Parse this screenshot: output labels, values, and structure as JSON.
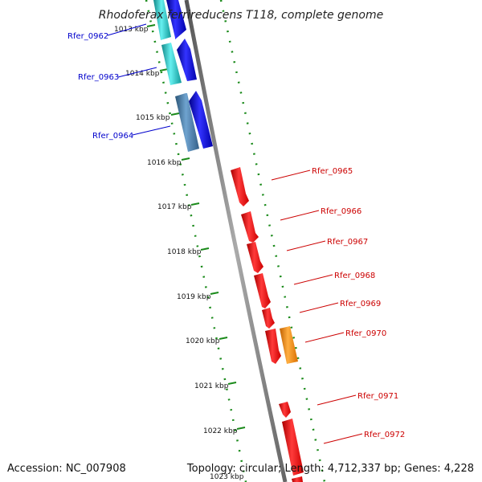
{
  "title": "Rhodoferax ferrireducens T118, complete genome",
  "footer": {
    "accession": "Accession: NC_007908",
    "stats": "Topology: circular; Length: 4,712,337 bp; Genes: 4,228"
  },
  "colors": {
    "backbone": "#808080",
    "ring_dots": "#1a8a1a",
    "reverse_strand_label": "#0000cc",
    "forward_strand_label": "#cc0000",
    "blue_gene": "#0000ee",
    "cyan_gene": "#22cccc",
    "steelblue_gene": "#4682b4",
    "red_gene": "#ee0000",
    "orange_gene": "#ff8c00"
  },
  "ticks": [
    "1013 kbp",
    "1014 kbp",
    "1015 kbp",
    "1016 kbp",
    "1017 kbp",
    "1018 kbp",
    "1019 kbp",
    "1020 kbp",
    "1021 kbp",
    "1022 kbp",
    "1023 kbp"
  ],
  "genes_reverse": [
    {
      "label": "Rfer_0962",
      "color": "cyan"
    },
    {
      "label": "Rfer_0963",
      "color": "cyan"
    },
    {
      "label": "Rfer_0964",
      "color": "steelblue"
    }
  ],
  "genes_forward": [
    {
      "label": "Rfer_0965",
      "color": "red"
    },
    {
      "label": "Rfer_0966",
      "color": "red"
    },
    {
      "label": "Rfer_0967",
      "color": "red"
    },
    {
      "label": "Rfer_0968",
      "color": "red"
    },
    {
      "label": "Rfer_0969",
      "color": "red"
    },
    {
      "label": "Rfer_0970",
      "color": "orange"
    },
    {
      "label": "Rfer_0971",
      "color": "red"
    },
    {
      "label": "Rfer_0972",
      "color": "red"
    }
  ]
}
